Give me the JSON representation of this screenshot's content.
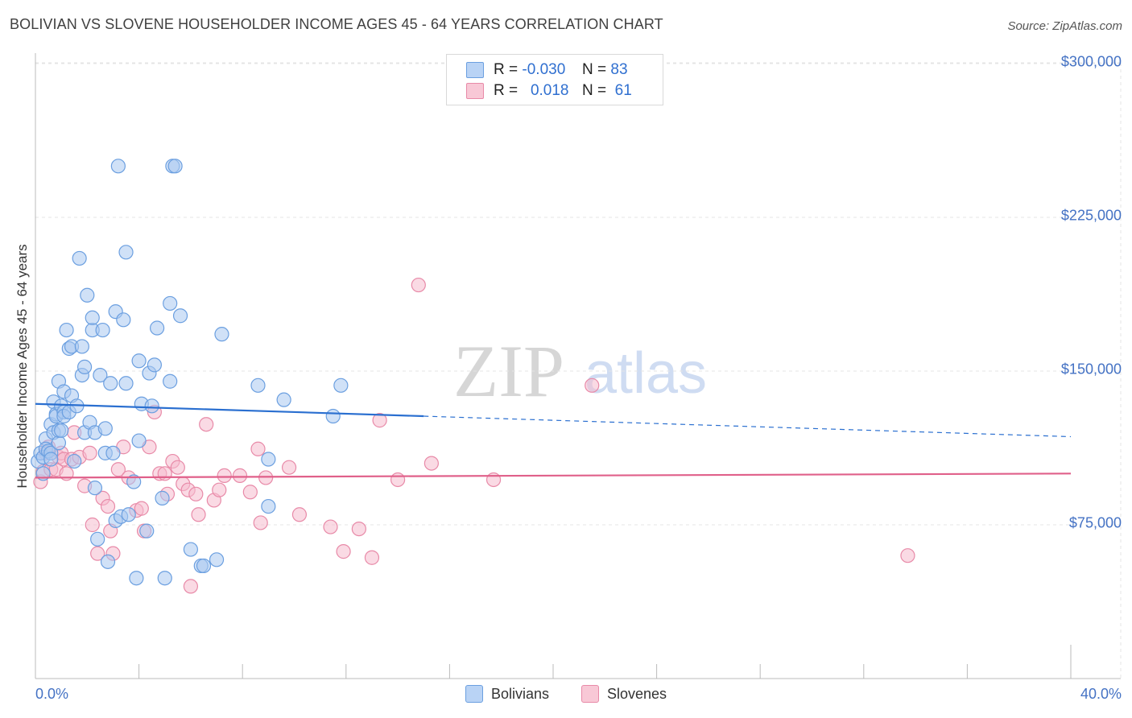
{
  "title": "BOLIVIAN VS SLOVENE HOUSEHOLDER INCOME AGES 45 - 64 YEARS CORRELATION CHART",
  "source": "Source: ZipAtlas.com",
  "watermark": {
    "zip": "ZIP",
    "atlas": "atlas"
  },
  "legend_top": {
    "rows": [
      {
        "r_label": "R =",
        "r_value": "-0.030",
        "n_label": "N =",
        "n_value": "83"
      },
      {
        "r_label": "R =",
        "r_value": "0.018",
        "n_label": "N =",
        "n_value": "61"
      }
    ]
  },
  "colors": {
    "bolivians_fill": "#a9c8f0",
    "bolivians_stroke": "#6b9fe0",
    "bolivians_line": "#2a6fd0",
    "slovenes_fill": "#f6bccd",
    "slovenes_stroke": "#e88aa8",
    "slovenes_line": "#e0608a",
    "tick_text": "#4472c4",
    "grid": "#e4e4e4"
  },
  "chart_data": {
    "type": "scatter",
    "title": "BOLIVIAN VS SLOVENE HOUSEHOLDER INCOME AGES 45 - 64 YEARS CORRELATION CHART",
    "xlabel": "",
    "ylabel": "Householder Income Ages 45 - 64 years",
    "xlim": [
      0,
      40
    ],
    "ylim": [
      0,
      300000
    ],
    "x_tick_labels": [
      "0.0%",
      "40.0%"
    ],
    "y_ticks": [
      75000,
      150000,
      225000,
      300000
    ],
    "y_tick_labels": [
      "$75,000",
      "$150,000",
      "$225,000",
      "$300,000"
    ],
    "grid": true,
    "legend_placement": "bottom-center",
    "series": [
      {
        "name": "Bolivians",
        "r": -0.03,
        "n": 83,
        "trend": {
          "x": [
            0,
            15
          ],
          "y": [
            134000,
            128000
          ],
          "dashed_to": [
            40,
            118000
          ]
        },
        "points": [
          [
            0.1,
            106000
          ],
          [
            0.2,
            110000
          ],
          [
            0.3,
            108000
          ],
          [
            0.3,
            100000
          ],
          [
            0.4,
            117000
          ],
          [
            0.4,
            112000
          ],
          [
            0.5,
            111000
          ],
          [
            0.6,
            124000
          ],
          [
            0.6,
            110000
          ],
          [
            0.6,
            107000
          ],
          [
            0.7,
            135000
          ],
          [
            0.7,
            120000
          ],
          [
            0.8,
            129000
          ],
          [
            0.8,
            128000
          ],
          [
            0.9,
            115000
          ],
          [
            0.9,
            121000
          ],
          [
            0.9,
            145000
          ],
          [
            1.0,
            133000
          ],
          [
            1.0,
            121000
          ],
          [
            1.1,
            140000
          ],
          [
            1.1,
            130000
          ],
          [
            1.1,
            128000
          ],
          [
            1.2,
            170000
          ],
          [
            1.3,
            161000
          ],
          [
            1.3,
            130000
          ],
          [
            1.4,
            162000
          ],
          [
            1.4,
            138000
          ],
          [
            1.5,
            106000
          ],
          [
            1.6,
            133000
          ],
          [
            1.7,
            205000
          ],
          [
            1.8,
            162000
          ],
          [
            1.8,
            148000
          ],
          [
            1.9,
            152000
          ],
          [
            1.9,
            120000
          ],
          [
            2.0,
            187000
          ],
          [
            2.1,
            125000
          ],
          [
            2.2,
            170000
          ],
          [
            2.2,
            176000
          ],
          [
            2.3,
            120000
          ],
          [
            2.3,
            93000
          ],
          [
            2.4,
            68000
          ],
          [
            2.5,
            148000
          ],
          [
            2.6,
            170000
          ],
          [
            2.7,
            110000
          ],
          [
            2.7,
            122000
          ],
          [
            2.8,
            57000
          ],
          [
            2.9,
            144000
          ],
          [
            3.0,
            110000
          ],
          [
            3.1,
            179000
          ],
          [
            3.1,
            77000
          ],
          [
            3.2,
            250000
          ],
          [
            3.3,
            79000
          ],
          [
            3.4,
            175000
          ],
          [
            3.5,
            144000
          ],
          [
            3.5,
            208000
          ],
          [
            3.6,
            80000
          ],
          [
            3.8,
            96000
          ],
          [
            3.9,
            49000
          ],
          [
            4.0,
            155000
          ],
          [
            4.0,
            116000
          ],
          [
            4.1,
            134000
          ],
          [
            4.3,
            72000
          ],
          [
            4.4,
            149000
          ],
          [
            4.5,
            133000
          ],
          [
            4.6,
            153000
          ],
          [
            4.7,
            171000
          ],
          [
            4.9,
            88000
          ],
          [
            5.0,
            49000
          ],
          [
            5.2,
            145000
          ],
          [
            5.2,
            183000
          ],
          [
            5.3,
            250000
          ],
          [
            5.4,
            250000
          ],
          [
            5.6,
            177000
          ],
          [
            6.0,
            63000
          ],
          [
            6.4,
            55000
          ],
          [
            6.5,
            55000
          ],
          [
            7.0,
            58000
          ],
          [
            7.2,
            168000
          ],
          [
            8.6,
            143000
          ],
          [
            9.0,
            107000
          ],
          [
            9.0,
            84000
          ],
          [
            9.6,
            136000
          ],
          [
            11.8,
            143000
          ],
          [
            11.5,
            128000
          ]
        ]
      },
      {
        "name": "Slovenes",
        "r": 0.018,
        "n": 61,
        "trend": {
          "x": [
            0,
            40
          ],
          "y": [
            98000,
            100000
          ]
        },
        "points": [
          [
            0.2,
            96000
          ],
          [
            0.3,
            101000
          ],
          [
            0.4,
            110000
          ],
          [
            0.5,
            113000
          ],
          [
            0.6,
            102000
          ],
          [
            0.8,
            102000
          ],
          [
            0.9,
            108000
          ],
          [
            1.0,
            110000
          ],
          [
            1.1,
            107000
          ],
          [
            1.2,
            100000
          ],
          [
            1.4,
            107000
          ],
          [
            1.5,
            120000
          ],
          [
            1.7,
            108000
          ],
          [
            1.9,
            94000
          ],
          [
            2.1,
            110000
          ],
          [
            2.2,
            75000
          ],
          [
            2.4,
            61000
          ],
          [
            2.6,
            88000
          ],
          [
            2.8,
            84000
          ],
          [
            2.9,
            72000
          ],
          [
            3.0,
            61000
          ],
          [
            3.2,
            102000
          ],
          [
            3.4,
            113000
          ],
          [
            3.6,
            98000
          ],
          [
            3.9,
            82000
          ],
          [
            4.1,
            83000
          ],
          [
            4.2,
            72000
          ],
          [
            4.4,
            113000
          ],
          [
            4.6,
            130000
          ],
          [
            4.8,
            100000
          ],
          [
            5.0,
            100000
          ],
          [
            5.1,
            90000
          ],
          [
            5.3,
            106000
          ],
          [
            5.5,
            103000
          ],
          [
            5.7,
            95000
          ],
          [
            5.9,
            92000
          ],
          [
            6.0,
            45000
          ],
          [
            6.2,
            90000
          ],
          [
            6.3,
            80000
          ],
          [
            6.6,
            124000
          ],
          [
            6.9,
            87000
          ],
          [
            7.1,
            92000
          ],
          [
            7.3,
            99000
          ],
          [
            7.9,
            99000
          ],
          [
            8.3,
            91000
          ],
          [
            8.6,
            112000
          ],
          [
            8.7,
            76000
          ],
          [
            8.9,
            98000
          ],
          [
            9.8,
            103000
          ],
          [
            10.2,
            80000
          ],
          [
            11.4,
            74000
          ],
          [
            11.9,
            62000
          ],
          [
            12.5,
            73000
          ],
          [
            13.0,
            59000
          ],
          [
            13.3,
            126000
          ],
          [
            14.0,
            97000
          ],
          [
            14.8,
            192000
          ],
          [
            15.3,
            105000
          ],
          [
            17.7,
            97000
          ],
          [
            21.5,
            143000
          ],
          [
            33.7,
            60000
          ]
        ]
      }
    ]
  }
}
